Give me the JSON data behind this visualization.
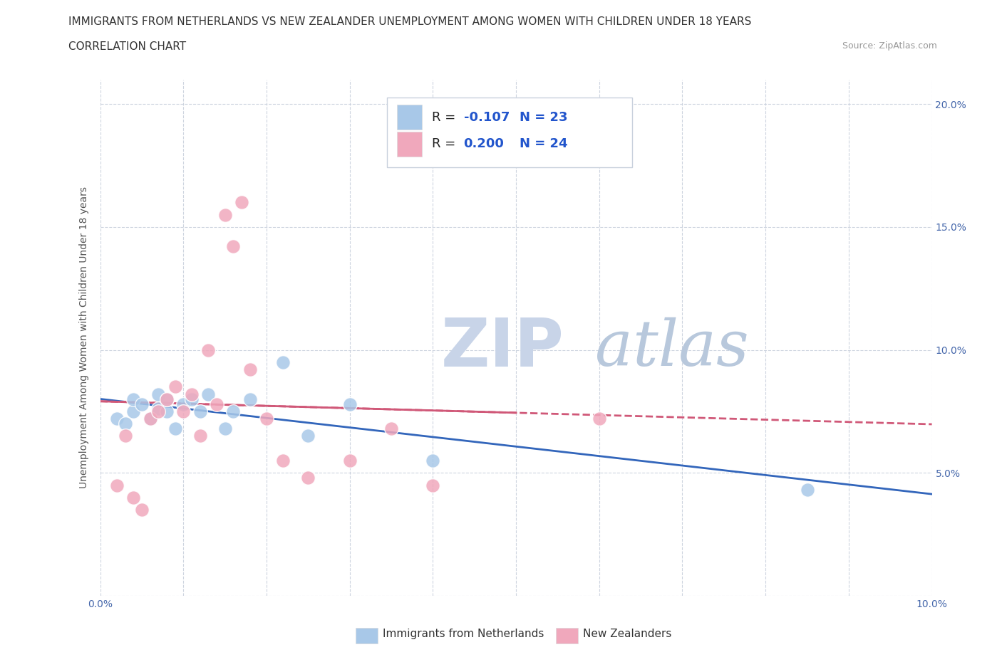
{
  "title_line1": "IMMIGRANTS FROM NETHERLANDS VS NEW ZEALANDER UNEMPLOYMENT AMONG WOMEN WITH CHILDREN UNDER 18 YEARS",
  "title_line2": "CORRELATION CHART",
  "source_text": "Source: ZipAtlas.com",
  "ylabel": "Unemployment Among Women with Children Under 18 years",
  "xlim": [
    0.0,
    0.1
  ],
  "ylim": [
    0.0,
    0.21
  ],
  "x_ticks": [
    0.0,
    0.01,
    0.02,
    0.03,
    0.04,
    0.05,
    0.06,
    0.07,
    0.08,
    0.09,
    0.1
  ],
  "y_ticks": [
    0.0,
    0.05,
    0.1,
    0.15,
    0.2
  ],
  "background_color": "#ffffff",
  "plot_background_color": "#ffffff",
  "grid_color": "#c8d0dc",
  "watermark_zip": "ZIP",
  "watermark_atlas": "atlas",
  "watermark_color_zip": "#c8d4e8",
  "watermark_color_atlas": "#b8c8dc",
  "netherlands_color": "#a8c8e8",
  "newzealand_color": "#f0a8bc",
  "netherlands_line_color": "#3366bb",
  "newzealand_line_color": "#d05878",
  "netherlands_R": -0.107,
  "netherlands_N": 23,
  "newzealand_R": 0.2,
  "newzealand_N": 24,
  "netherlands_points_x": [
    0.002,
    0.003,
    0.004,
    0.004,
    0.005,
    0.006,
    0.007,
    0.007,
    0.008,
    0.008,
    0.009,
    0.01,
    0.011,
    0.012,
    0.013,
    0.015,
    0.016,
    0.018,
    0.022,
    0.025,
    0.03,
    0.04,
    0.085
  ],
  "netherlands_points_y": [
    0.072,
    0.07,
    0.075,
    0.08,
    0.078,
    0.072,
    0.076,
    0.082,
    0.075,
    0.08,
    0.068,
    0.078,
    0.08,
    0.075,
    0.082,
    0.068,
    0.075,
    0.08,
    0.095,
    0.065,
    0.078,
    0.055,
    0.043
  ],
  "newzealand_points_x": [
    0.002,
    0.003,
    0.004,
    0.005,
    0.006,
    0.007,
    0.008,
    0.009,
    0.01,
    0.011,
    0.012,
    0.013,
    0.014,
    0.015,
    0.016,
    0.017,
    0.018,
    0.02,
    0.022,
    0.025,
    0.03,
    0.035,
    0.04,
    0.06
  ],
  "newzealand_points_y": [
    0.045,
    0.065,
    0.04,
    0.035,
    0.072,
    0.075,
    0.08,
    0.085,
    0.075,
    0.082,
    0.065,
    0.1,
    0.078,
    0.155,
    0.142,
    0.16,
    0.092,
    0.072,
    0.055,
    0.048,
    0.055,
    0.068,
    0.045,
    0.072
  ],
  "legend_border_color": "#c8d0dc",
  "title_fontsize": 11,
  "axis_label_fontsize": 10,
  "tick_fontsize": 10
}
